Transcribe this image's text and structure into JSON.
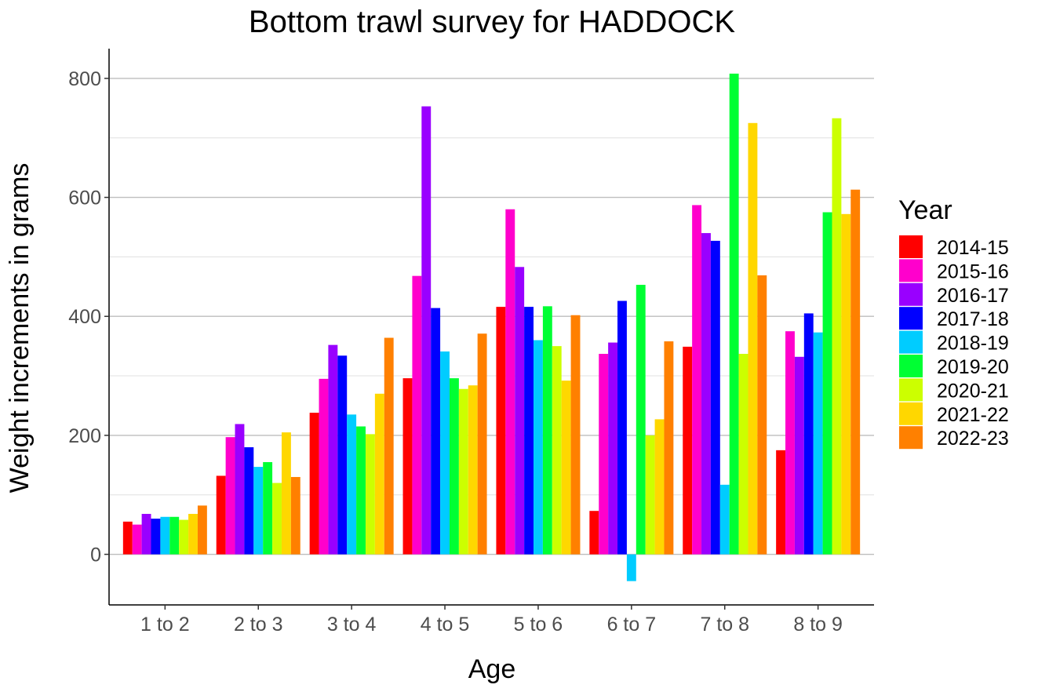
{
  "chart_data": {
    "type": "bar",
    "title": "Bottom trawl survey for HADDOCK",
    "xlabel": "Age",
    "ylabel": "Weight increments in grams",
    "ylim": [
      -85,
      850
    ],
    "yticks": [
      0,
      200,
      400,
      600,
      800
    ],
    "grid": true,
    "legend": {
      "title": "Year",
      "position": "right"
    },
    "categories": [
      "1 to 2",
      "2 to 3",
      "3 to 4",
      "4 to 5",
      "5 to 6",
      "6 to 7",
      "7 to 8",
      "8 to 9"
    ],
    "series": [
      {
        "name": "2014-15",
        "color": "#ff0000",
        "values": [
          55,
          132,
          238,
          296,
          416,
          73,
          349,
          175
        ]
      },
      {
        "name": "2015-16",
        "color": "#ff00cc",
        "values": [
          50,
          197,
          295,
          468,
          580,
          337,
          587,
          375
        ]
      },
      {
        "name": "2016-17",
        "color": "#9900ff",
        "values": [
          68,
          219,
          352,
          753,
          483,
          356,
          540,
          332
        ]
      },
      {
        "name": "2017-18",
        "color": "#0000ff",
        "values": [
          60,
          180,
          334,
          414,
          416,
          426,
          527,
          405
        ]
      },
      {
        "name": "2018-19",
        "color": "#00ccff",
        "values": [
          63,
          147,
          235,
          341,
          360,
          -45,
          117,
          373
        ]
      },
      {
        "name": "2019-20",
        "color": "#00ff33",
        "values": [
          63,
          155,
          215,
          296,
          417,
          453,
          808,
          575
        ]
      },
      {
        "name": "2020-21",
        "color": "#ccff00",
        "values": [
          58,
          120,
          202,
          278,
          350,
          200,
          337,
          733
        ]
      },
      {
        "name": "2021-22",
        "color": "#ffd700",
        "values": [
          68,
          205,
          270,
          284,
          292,
          227,
          725,
          572
        ]
      },
      {
        "name": "2022-23",
        "color": "#ff8000",
        "values": [
          82,
          130,
          364,
          371,
          402,
          358,
          469,
          613
        ]
      }
    ]
  }
}
